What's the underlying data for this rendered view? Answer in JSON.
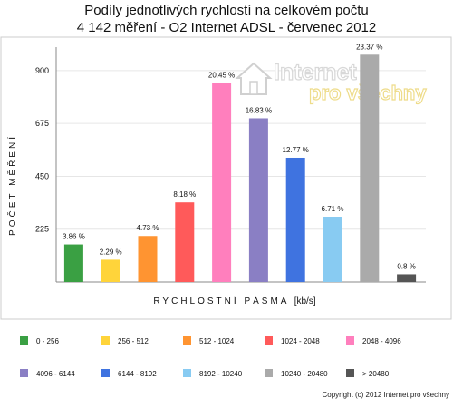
{
  "chart_data": {
    "type": "bar",
    "title_line1": "Podíly jednotlivých rychlostí na celkovém počtu",
    "title_line2": "4 142 měření - O2 Internet ADSL  - červenec 2012",
    "xlabel": "RYCHLOSTNÍ PÁSMA",
    "xlabel_unit": "[kb/s]",
    "ylabel": "POČET MĚŘENÍ",
    "ylim": [
      0,
      1000
    ],
    "yticks": [
      225,
      450,
      675,
      900
    ],
    "grid": "horizontal",
    "legend_position": "bottom",
    "categories": [
      "0 - 256",
      "256 - 512",
      "512 - 1024",
      "1024 - 2048",
      "2048 - 4096",
      "4096 - 6144",
      "6144 - 8192",
      "8192 - 10240",
      "10240 - 20480",
      "> 20480"
    ],
    "values": [
      160,
      95,
      196,
      339,
      847,
      697,
      529,
      278,
      968,
      33
    ],
    "data_labels": [
      "3.86 %",
      "2.29 %",
      "4.73 %",
      "8.18 %",
      "20.45 %",
      "16.83 %",
      "12.77 %",
      "6.71 %",
      "23.37 %",
      "0.8 %"
    ],
    "colors": [
      "#3aa043",
      "#ffd43a",
      "#ff9431",
      "#ff5a5a",
      "#ff7fbd",
      "#8a7fc4",
      "#3f73e0",
      "#88cbf2",
      "#aaaaaa",
      "#555555"
    ]
  },
  "watermark": {
    "line1": "Internet",
    "line2": "pro všechny"
  },
  "copyright": "Copyright (c) 2012 Internet pro všechny"
}
